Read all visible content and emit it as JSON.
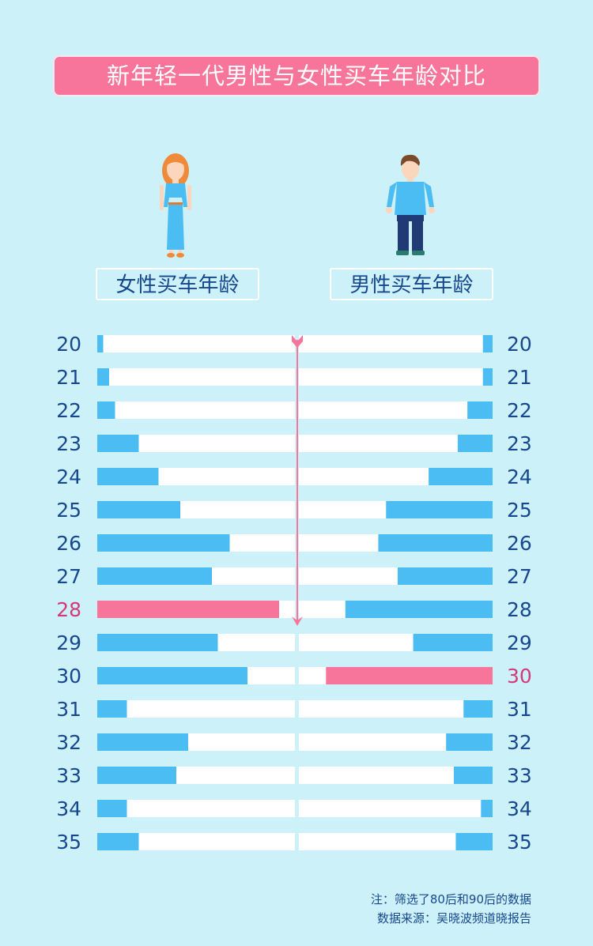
{
  "title": "新年轻一代男性与女性买车年龄对比",
  "female_label": "女性买车年龄",
  "male_label": "男性买车年龄",
  "colors": {
    "bar": "#4bbdf3",
    "highlight": "#f7759a",
    "track": "#ffffff",
    "axis_text": "#17488f",
    "highlight_text": "#d23b78"
  },
  "chart_data": {
    "type": "bar",
    "orientation": "horizontal-back-to-back",
    "categories": [
      "20",
      "21",
      "22",
      "23",
      "24",
      "25",
      "26",
      "27",
      "28",
      "29",
      "30",
      "31",
      "32",
      "33",
      "34",
      "35"
    ],
    "series": [
      {
        "name": "女性买车年龄",
        "values": [
          3,
          6,
          9,
          21,
          31,
          42,
          67,
          58,
          92,
          61,
          76,
          15,
          46,
          40,
          15,
          21
        ],
        "highlight": "28"
      },
      {
        "name": "男性买车年龄",
        "values": [
          5,
          5,
          13,
          18,
          33,
          55,
          59,
          49,
          76,
          41,
          86,
          15,
          24,
          20,
          6,
          19
        ],
        "highlight": "30"
      }
    ]
  },
  "footnote": {
    "note": "注：筛选了80后和90后的数据",
    "source": "数据来源：吴晓波频道晓报告"
  }
}
